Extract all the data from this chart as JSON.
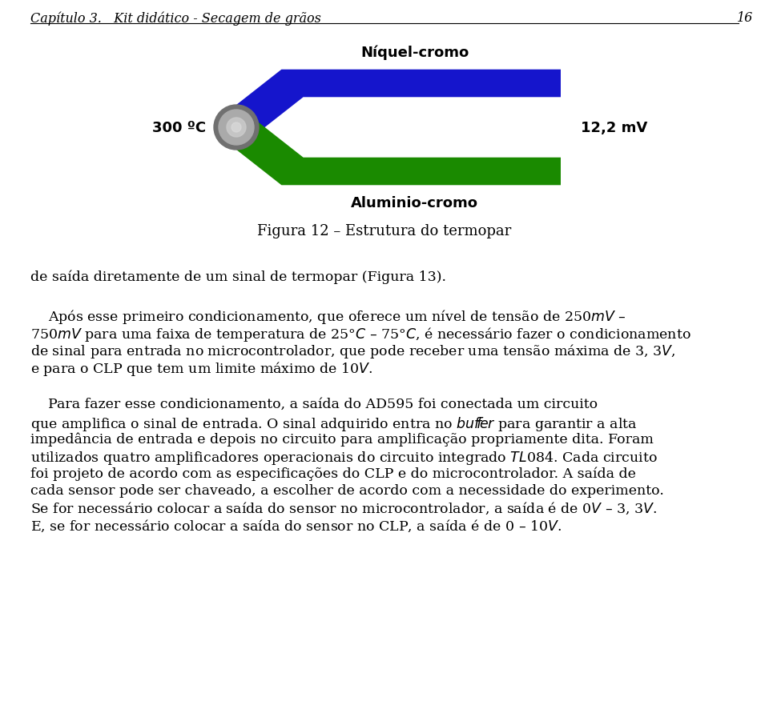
{
  "page_title": "Capítulo 3.   Kit didático - Secagem de grãos",
  "page_number": "16",
  "figure_caption": "Figura 12 – Estrutura do termopar",
  "label_niquel": "Níquel-cromo",
  "label_aluminio": "Aluminio-cromo",
  "label_300": "300 ºC",
  "label_12v": "12,2 mV",
  "niquel_color": "#1515CC",
  "aluminio_color": "#1a8a00",
  "junction_color": "#999999",
  "text_color": "#000000",
  "background_color": "#ffffff",
  "paragraph1": "de saída diretamente de um sinal de termopar (Figura 13).",
  "para2_line1": "    Após esse primeiro condicionamento, que oferece um nível de tensão de 250$mV$ –",
  "para2_line2": "750$mV$ para uma faixa de temperatura de 25°$C$ – 75°$C$, é necessário fazer o condicionamento",
  "para2_line3": "de sinal para entrada no microcontrolador, que pode receber uma tensão máxima de 3, 3$V$,",
  "para2_line4": "e para o CLP que tem um limite máximo de 10$V$.",
  "para3_line1": "    Para fazer esse condicionamento, a saída do AD595 foi conectada um circuito",
  "para3_line2": "que amplifica o sinal de entrada. O sinal adquirido entra no $buf\\!f\\!er$ para garantir a alta",
  "para3_line3": "impedância de entrada e depois no circuito para amplificação propriamente dita. Foram",
  "para3_line4": "utilizados quatro amplificadores operacionais do circuito integrado $TL$084. Cada circuito",
  "para3_line5": "foi projeto de acordo com as especificações do CLP e do microcontrolador. A saída de",
  "para3_line6": "cada sensor pode ser chaveado, a escolher de acordo com a necessidade do experimento.",
  "para3_line7": "Se for necessário colocar a saída do sensor no microcontrolador, a saída é de 0$V$ – 3, 3$V$.",
  "para3_line8": "E, se for necessário colocar a saída do sensor no CLP, a saída é de 0 – 10$V$."
}
